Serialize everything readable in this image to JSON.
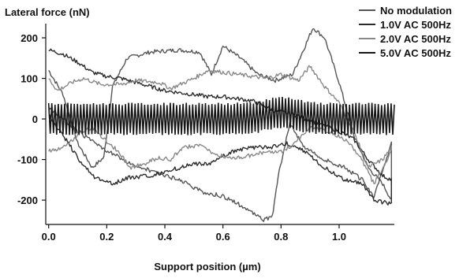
{
  "chart_data": {
    "type": "line",
    "title": "",
    "ylabel": "Lateral force (nN)",
    "xlabel": "Support position (µm)",
    "xlim": [
      -0.01,
      1.19
    ],
    "ylim": [
      -260,
      235
    ],
    "x_ticks": [
      0.0,
      0.2,
      0.4,
      0.6,
      0.8,
      1.0
    ],
    "x_tick_labels": [
      "0.0",
      "0.2",
      "0.4",
      "0.6",
      "0.8",
      "1.0"
    ],
    "y_ticks": [
      200,
      100,
      0,
      -100,
      -200
    ],
    "y_tick_labels": [
      "200",
      "100",
      "0",
      "-100",
      "-200"
    ],
    "legend_position": "top-right",
    "series": [
      {
        "name": "No modulation",
        "color": "#555555",
        "trace": "loop",
        "forward": [
          [
            0.0,
            120
          ],
          [
            0.05,
            60
          ],
          [
            0.1,
            -60
          ],
          [
            0.15,
            -120
          ],
          [
            0.19,
            -95
          ],
          [
            0.22,
            80
          ],
          [
            0.27,
            150
          ],
          [
            0.35,
            165
          ],
          [
            0.45,
            170
          ],
          [
            0.52,
            165
          ],
          [
            0.56,
            110
          ],
          [
            0.6,
            180
          ],
          [
            0.66,
            150
          ],
          [
            0.72,
            110
          ],
          [
            0.78,
            95
          ],
          [
            0.84,
            110
          ],
          [
            0.88,
            175
          ],
          [
            0.91,
            225
          ],
          [
            0.95,
            200
          ],
          [
            1.0,
            90
          ],
          [
            1.05,
            -40
          ],
          [
            1.1,
            -120
          ],
          [
            1.15,
            -160
          ],
          [
            1.18,
            -200
          ]
        ],
        "backward": [
          [
            1.18,
            -60
          ],
          [
            1.12,
            -190
          ],
          [
            1.08,
            -150
          ],
          [
            1.02,
            -120
          ],
          [
            0.95,
            -100
          ],
          [
            0.88,
            -70
          ],
          [
            0.83,
            -10
          ],
          [
            0.79,
            -140
          ],
          [
            0.77,
            -240
          ],
          [
            0.74,
            -250
          ],
          [
            0.68,
            -220
          ],
          [
            0.6,
            -190
          ],
          [
            0.53,
            -180
          ],
          [
            0.45,
            -150
          ],
          [
            0.4,
            -140
          ],
          [
            0.34,
            -125
          ],
          [
            0.27,
            -105
          ],
          [
            0.18,
            -70
          ],
          [
            0.1,
            -30
          ],
          [
            0.05,
            0
          ],
          [
            0.0,
            30
          ]
        ]
      },
      {
        "name": "1.0V AC 500Hz",
        "color": "#2b2b2b",
        "trace": "loop",
        "forward": [
          [
            0.0,
            170
          ],
          [
            0.05,
            160
          ],
          [
            0.1,
            140
          ],
          [
            0.15,
            115
          ],
          [
            0.2,
            105
          ],
          [
            0.25,
            100
          ],
          [
            0.3,
            90
          ],
          [
            0.4,
            70
          ],
          [
            0.5,
            60
          ],
          [
            0.55,
            55
          ],
          [
            0.6,
            55
          ],
          [
            0.7,
            45
          ],
          [
            0.78,
            20
          ],
          [
            0.85,
            10
          ],
          [
            0.92,
            -10
          ],
          [
            1.0,
            -30
          ],
          [
            1.05,
            -50
          ],
          [
            1.1,
            -100
          ],
          [
            1.15,
            -140
          ],
          [
            1.18,
            -150
          ]
        ],
        "backward": [
          [
            1.18,
            -210
          ],
          [
            1.12,
            -200
          ],
          [
            1.08,
            -160
          ],
          [
            1.02,
            -150
          ],
          [
            0.95,
            -120
          ],
          [
            0.88,
            -80
          ],
          [
            0.82,
            -60
          ],
          [
            0.76,
            -70
          ],
          [
            0.7,
            -70
          ],
          [
            0.63,
            -80
          ],
          [
            0.56,
            -110
          ],
          [
            0.5,
            -110
          ],
          [
            0.45,
            -120
          ],
          [
            0.4,
            -130
          ],
          [
            0.35,
            -140
          ],
          [
            0.27,
            -145
          ],
          [
            0.22,
            -160
          ],
          [
            0.15,
            -140
          ],
          [
            0.1,
            -95
          ],
          [
            0.05,
            -40
          ],
          [
            0.0,
            10
          ]
        ]
      },
      {
        "name": "2.0V AC 500Hz",
        "color": "#888888",
        "trace": "loop",
        "forward": [
          [
            0.0,
            100
          ],
          [
            0.03,
            70
          ],
          [
            0.08,
            90
          ],
          [
            0.12,
            100
          ],
          [
            0.18,
            85
          ],
          [
            0.25,
            85
          ],
          [
            0.3,
            95
          ],
          [
            0.38,
            90
          ],
          [
            0.42,
            75
          ],
          [
            0.5,
            100
          ],
          [
            0.55,
            120
          ],
          [
            0.6,
            115
          ],
          [
            0.7,
            105
          ],
          [
            0.75,
            100
          ],
          [
            0.8,
            110
          ],
          [
            0.86,
            95
          ],
          [
            0.9,
            130
          ],
          [
            0.95,
            80
          ],
          [
            1.0,
            40
          ],
          [
            1.05,
            -30
          ],
          [
            1.1,
            -120
          ],
          [
            1.15,
            -100
          ],
          [
            1.18,
            -70
          ]
        ],
        "backward": [
          [
            1.18,
            -80
          ],
          [
            1.12,
            -160
          ],
          [
            1.07,
            -90
          ],
          [
            1.02,
            -50
          ],
          [
            0.96,
            -30
          ],
          [
            0.9,
            -20
          ],
          [
            0.85,
            -60
          ],
          [
            0.8,
            -80
          ],
          [
            0.75,
            -80
          ],
          [
            0.7,
            -90
          ],
          [
            0.65,
            -95
          ],
          [
            0.58,
            -90
          ],
          [
            0.52,
            -65
          ],
          [
            0.46,
            -70
          ],
          [
            0.42,
            -100
          ],
          [
            0.38,
            -95
          ],
          [
            0.33,
            -110
          ],
          [
            0.28,
            -120
          ],
          [
            0.24,
            -80
          ],
          [
            0.2,
            -55
          ],
          [
            0.15,
            -20
          ],
          [
            0.1,
            -40
          ],
          [
            0.05,
            -70
          ],
          [
            0.0,
            -80
          ]
        ]
      },
      {
        "name": "5.0V AC 500Hz",
        "color": "#161616",
        "trace": "oscillation",
        "x_start": 0.0,
        "x_end": 1.19,
        "cycles": 108,
        "amplitude": 40,
        "center": 0,
        "center_hump": [
          0.8,
          15
        ]
      }
    ]
  }
}
